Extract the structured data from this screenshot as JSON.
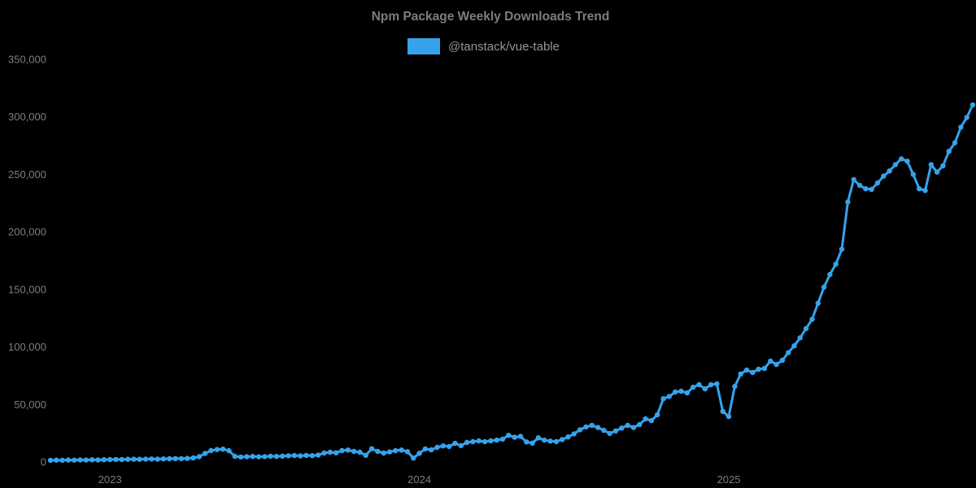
{
  "title": "Npm Package Weekly Downloads Trend",
  "legend": {
    "label": "@tanstack/vue-table",
    "swatch_color": "#36A2EB"
  },
  "colors": {
    "background": "#000000",
    "line": "#36A2EB",
    "title_text": "#7d7d7d",
    "legend_text": "#949494",
    "tick_text": "#7d7d7d"
  },
  "chart_data": {
    "type": "line",
    "title": "Npm Package Weekly Downloads Trend",
    "x_unit": "week",
    "grid": false,
    "legend_position": "top",
    "marker": "circle",
    "ylim": [
      0,
      350000
    ],
    "y_ticks": [
      0,
      50000,
      100000,
      150000,
      200000,
      250000,
      300000,
      350000
    ],
    "y_tick_labels": [
      "0",
      "50,000",
      "100,000",
      "150,000",
      "200,000",
      "250,000",
      "300,000",
      "350,000"
    ],
    "x_tick_labels": [
      "2023",
      "2024",
      "2025"
    ],
    "x_tick_indices": [
      10,
      62,
      114
    ],
    "n_points": 156,
    "series": [
      {
        "name": "@tanstack/vue-table",
        "values": [
          1400,
          1600,
          1500,
          1700,
          1600,
          1800,
          1700,
          1900,
          1800,
          2000,
          2100,
          2200,
          2100,
          2300,
          2400,
          2300,
          2500,
          2600,
          2500,
          2700,
          2800,
          3000,
          2900,
          3100,
          3500,
          4600,
          7400,
          9900,
          10800,
          11200,
          9800,
          4900,
          4300,
          4600,
          4800,
          4500,
          4700,
          5000,
          4800,
          5100,
          5400,
          5600,
          5300,
          5700,
          5500,
          6000,
          7800,
          8500,
          8000,
          9900,
          10400,
          9200,
          8500,
          5800,
          11500,
          9200,
          7800,
          8800,
          9900,
          10400,
          9000,
          3400,
          7600,
          11400,
          10500,
          12700,
          14000,
          13400,
          16200,
          14200,
          17000,
          17700,
          18300,
          17700,
          18400,
          19000,
          19800,
          23200,
          21500,
          22300,
          17500,
          16400,
          21000,
          19000,
          18200,
          17700,
          19500,
          21800,
          24500,
          28000,
          30500,
          31800,
          30000,
          27500,
          24800,
          27000,
          29500,
          31800,
          30000,
          32500,
          37500,
          36000,
          41000,
          55000,
          57000,
          60800,
          61500,
          60000,
          65000,
          67200,
          63600,
          67200,
          67900,
          44000,
          39500,
          65700,
          76500,
          79900,
          77800,
          80600,
          81300,
          87700,
          84800,
          88400,
          95000,
          101000,
          108000,
          116000,
          124000,
          138000,
          152000,
          163000,
          172000,
          185000,
          226000,
          245500,
          240500,
          237500,
          237000,
          242500,
          248500,
          253000,
          258500,
          263500,
          261500,
          250000,
          237500,
          236000,
          258500,
          252000,
          257500,
          270000,
          277500,
          291000,
          299500,
          310500
        ]
      }
    ]
  }
}
